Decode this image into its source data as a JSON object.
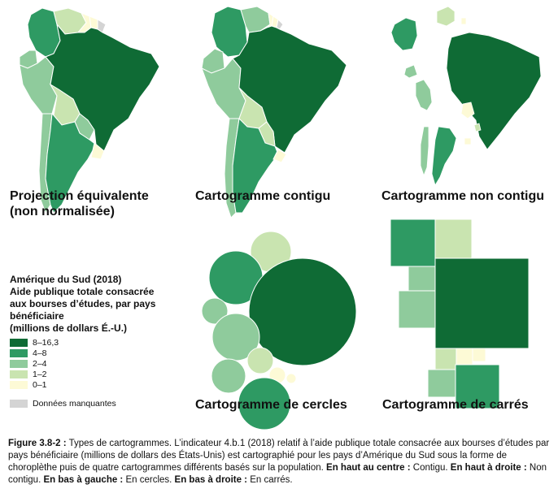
{
  "colors": {
    "c8_16": "#0f6b35",
    "c4_8": "#2e9a63",
    "c2_4": "#8fcb9c",
    "c1_2": "#c9e4b0",
    "c0_1": "#fdfad6",
    "missing": "#d4d4d4",
    "outline": "#ffffff"
  },
  "panels": {
    "equal_area": {
      "title_line1": "Projection équivalente",
      "title_line2": "(non normalisée)"
    },
    "contiguous": {
      "title": "Cartogramme contigu"
    },
    "noncontiguous": {
      "title": "Cartogramme non contigu"
    },
    "circles": {
      "title": "Cartogramme de cercles"
    },
    "squares": {
      "title": "Cartogramme de carrés"
    }
  },
  "legend": {
    "title_line1": "Amérique du Sud (2018)",
    "title_line2": "Aide publique totale consacrée",
    "title_line3": "aux bourses d’études, par pays",
    "title_line4": "bénéficiaire",
    "title_line5": "(millions de dollars É.-U.)",
    "items": [
      {
        "label": "8–16,3",
        "color": "#0f6b35"
      },
      {
        "label": "4–8",
        "color": "#2e9a63"
      },
      {
        "label": "2–4",
        "color": "#8fcb9c"
      },
      {
        "label": "1–2",
        "color": "#c9e4b0"
      },
      {
        "label": "0–1",
        "color": "#fdfad6"
      }
    ],
    "missing_label": "Données manquantes",
    "missing_color": "#d4d4d4"
  },
  "caption": {
    "figure_ref": "Figure 3.8-2 :",
    "text1": " Types de cartogrammes. L’indicateur 4.b.1 (2018) relatif à l’aide publique totale consacrée aux bourses d’études par pays bénéficiaire (millions de dollars des États-Unis) est cartographié pour les pays d’Amérique du Sud sous la forme de choroplèthe puis de quatre cartogrammes différents basés sur la population. ",
    "top_center_label": "En haut au centre :",
    "top_center_text": " Contigu. ",
    "top_right_label": "En haut à droite :",
    "top_right_text": " Non contigu. ",
    "bottom_left_label": "En bas à gauche :",
    "bottom_left_text": " En cercles. ",
    "bottom_right_label": "En bas à droite :",
    "bottom_right_text": " En carrés."
  }
}
